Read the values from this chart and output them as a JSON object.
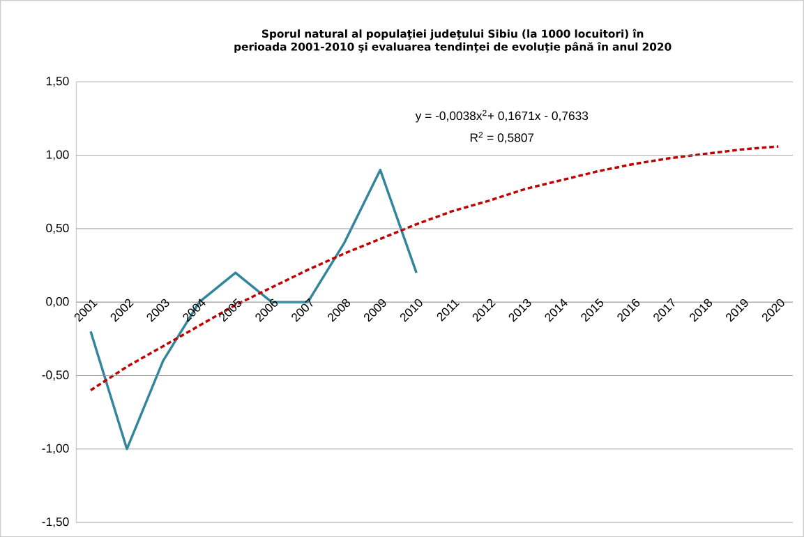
{
  "chart_data": {
    "type": "line",
    "title": "Sporul natural al populaţiei judeţului Sibiu (la 1000 locuitori) în perioada 2001-2010 şi evaluarea tendinţei de evoluţie până în anul 2020",
    "categories": [
      "2001",
      "2002",
      "2003",
      "2004",
      "2005",
      "2006",
      "2007",
      "2008",
      "2009",
      "2010",
      "2011",
      "2012",
      "2013",
      "2014",
      "2015",
      "2016",
      "2017",
      "2018",
      "2019",
      "2020"
    ],
    "series": [
      {
        "color": "#31859c",
        "line_style": "solid",
        "values": [
          -0.2,
          -1.0,
          -0.4,
          0.0,
          0.2,
          0.0,
          0.0,
          0.4,
          0.9,
          0.2,
          null,
          null,
          null,
          null,
          null,
          null,
          null,
          null,
          null,
          null
        ]
      },
      {
        "color": "#c00000",
        "line_style": "dashed",
        "values": [
          -0.6,
          -0.44,
          -0.3,
          -0.16,
          -0.02,
          0.1,
          0.22,
          0.33,
          0.43,
          0.53,
          0.62,
          0.69,
          0.77,
          0.83,
          0.89,
          0.94,
          0.98,
          1.01,
          1.04,
          1.06
        ]
      }
    ],
    "ylim": [
      -1.5,
      1.5
    ],
    "yticks": [
      {
        "value": -1.5,
        "label": "-1,50"
      },
      {
        "value": -1.0,
        "label": "-1,00"
      },
      {
        "value": -0.5,
        "label": "-0,50"
      },
      {
        "value": 0.0,
        "label": "0,00"
      },
      {
        "value": 0.5,
        "label": "0,50"
      },
      {
        "value": 1.0,
        "label": "1,00"
      },
      {
        "value": 1.5,
        "label": "1,50"
      }
    ],
    "grid": "y",
    "marker": "none",
    "annotations": [
      "y = -0,0038x$^{2}$+ 0,1671x - 0,7633",
      "R$^{2}$ = 0,5807"
    ]
  }
}
